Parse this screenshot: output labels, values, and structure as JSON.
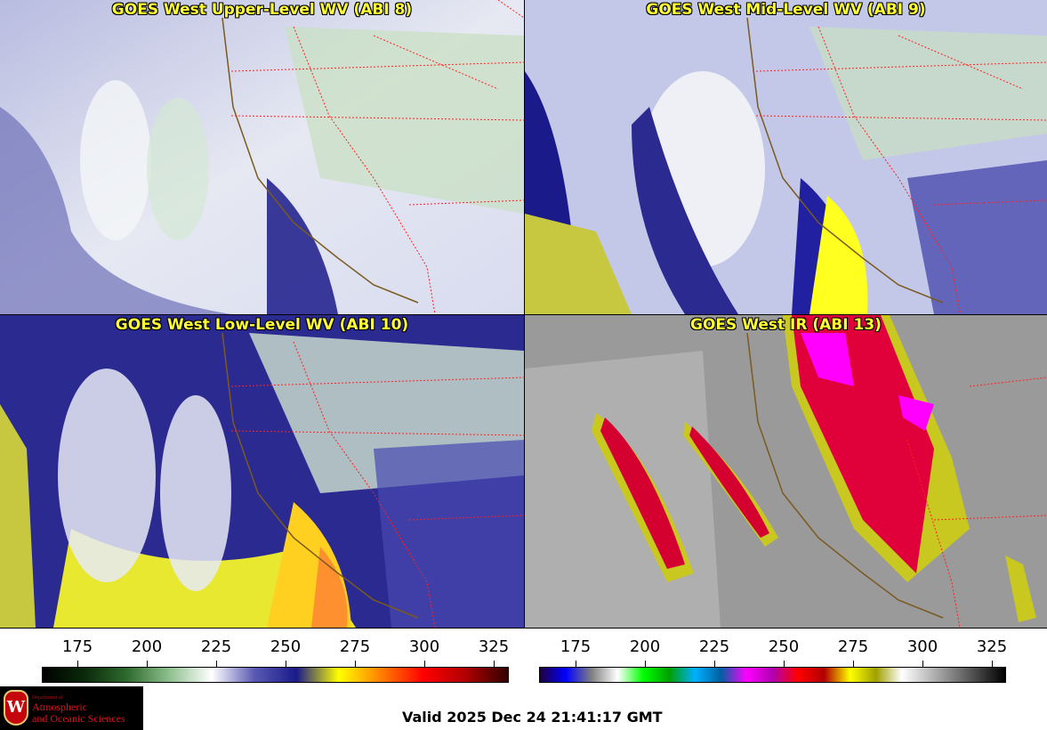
{
  "panels": [
    {
      "id": "upper",
      "title": "GOES West Upper-Level WV (ABI 8)"
    },
    {
      "id": "mid",
      "title": "GOES West Mid-Level WV (ABI 9)"
    },
    {
      "id": "low",
      "title": "GOES West Low-Level WV (ABI 10)"
    },
    {
      "id": "ir",
      "title": "GOES West IR (ABI 13)"
    }
  ],
  "wv_scale": {
    "ticks": [
      "175",
      "200",
      "225",
      "250",
      "275",
      "300",
      "325"
    ],
    "colors": [
      "#000000",
      "#0a2a0a",
      "#2e6b2e",
      "#8fc08f",
      "#ffffff",
      "#5a5ab4",
      "#1a1a8a",
      "#ffff00",
      "#ff8000",
      "#ff0000",
      "#b00000",
      "#300000"
    ]
  },
  "ir_scale": {
    "ticks": [
      "175",
      "200",
      "225",
      "250",
      "275",
      "300",
      "325"
    ],
    "colors": [
      "#200040",
      "#0000ff",
      "#808080",
      "#ffffff",
      "#00ff00",
      "#00a000",
      "#00b0ff",
      "#0060a0",
      "#ff00ff",
      "#b000b0",
      "#ff0000",
      "#b00000",
      "#ffff00",
      "#a0a000",
      "#ffffff",
      "#c0c0c0",
      "#808080",
      "#404040",
      "#000000"
    ]
  },
  "logo": {
    "line1": "Department of",
    "line2": "Atmospheric",
    "line3": "and Oceanic Sciences",
    "crest": "W"
  },
  "valid_time": "Valid 2025 Dec 24 21:41:17 GMT"
}
